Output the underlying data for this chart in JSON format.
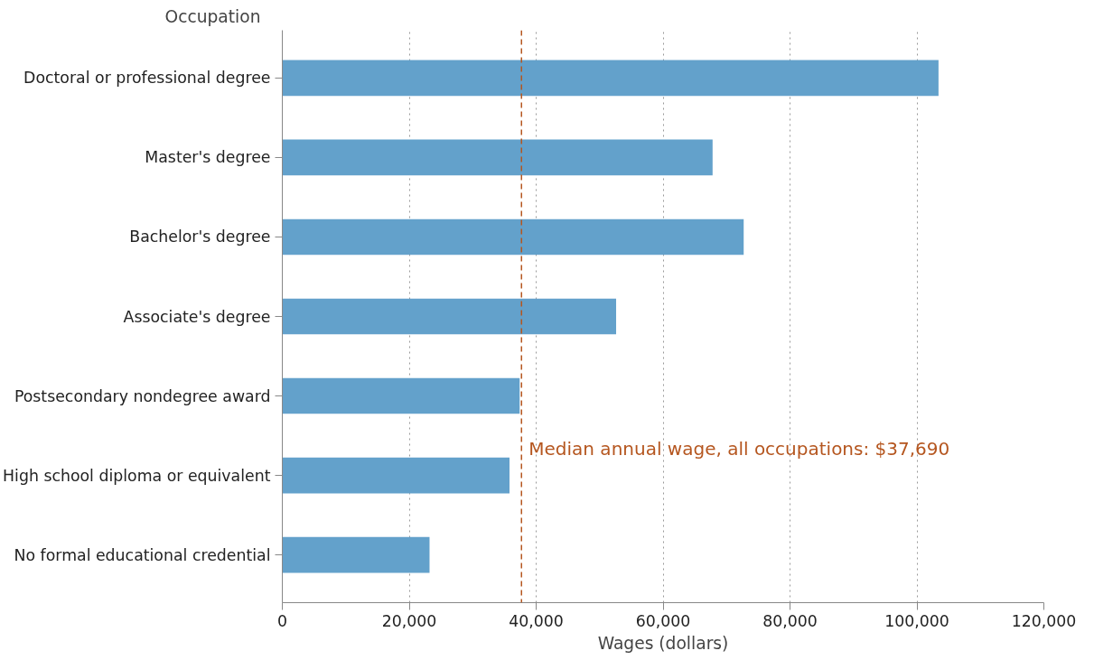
{
  "chart_data": {
    "type": "bar",
    "orientation": "horizontal",
    "ylabel": "Occupation",
    "xlabel": "Wages (dollars)",
    "categories": [
      "Doctoral or professional degree",
      "Master's degree",
      "Bachelor's degree",
      "Associate's degree",
      "Postsecondary nondegree award",
      "High school diploma or equivalent",
      "No formal educational credential"
    ],
    "values": [
      103400,
      67800,
      72700,
      52600,
      37400,
      35800,
      23200
    ],
    "color": "#63a1cb",
    "xlim": [
      0,
      120000
    ],
    "xticks": [
      0,
      {
        "value": 20000,
        "label": "20,000"
      },
      {
        "value": 40000,
        "label": "40,000"
      },
      {
        "value": 60000,
        "label": "60,000"
      },
      {
        "value": 80000,
        "label": "80,000"
      },
      {
        "value": 100000,
        "label": "100,000"
      },
      {
        "value": 120000,
        "label": "120,000"
      }
    ],
    "grid": "x",
    "ref_lines": [
      {
        "axis": "x",
        "value": 37690,
        "label": "Median annual wage, all occupations: $37,690",
        "color": "#b5561f",
        "line_style": "dashed"
      }
    ]
  }
}
